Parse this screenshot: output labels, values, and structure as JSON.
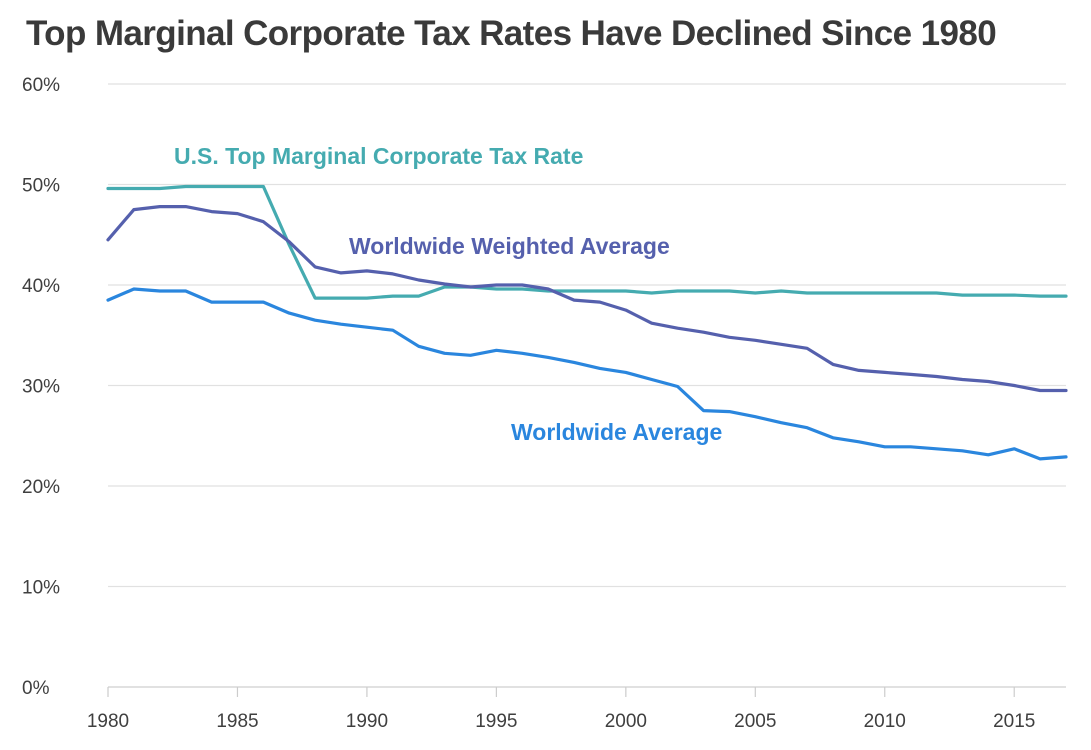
{
  "chart_data": {
    "type": "line",
    "title": "Top Marginal Corporate Tax Rates Have Declined Since 1980",
    "xlabel": "",
    "ylabel": "",
    "xlim": [
      1980,
      2017
    ],
    "ylim": [
      0,
      60
    ],
    "x_ticks": [
      1980,
      1985,
      1990,
      1995,
      2000,
      2005,
      2010,
      2015
    ],
    "y_ticks": [
      0,
      10,
      20,
      30,
      40,
      50,
      60
    ],
    "y_tick_labels": [
      "0%",
      "10%",
      "20%",
      "30%",
      "40%",
      "50%",
      "60%"
    ],
    "grid": "horizontal",
    "legend": "inline labels",
    "x": [
      1980,
      1981,
      1982,
      1983,
      1984,
      1985,
      1986,
      1987,
      1988,
      1989,
      1990,
      1991,
      1992,
      1993,
      1994,
      1995,
      1996,
      1997,
      1998,
      1999,
      2000,
      2001,
      2002,
      2003,
      2004,
      2005,
      2006,
      2007,
      2008,
      2009,
      2010,
      2011,
      2012,
      2013,
      2014,
      2015,
      2016,
      2017
    ],
    "series": [
      {
        "name": "U.S. Top Marginal Corporate Tax Rate",
        "color": "#45abb0",
        "values": [
          49.6,
          49.6,
          49.6,
          49.8,
          49.8,
          49.8,
          49.8,
          44.0,
          38.7,
          38.7,
          38.7,
          38.9,
          38.9,
          39.8,
          39.8,
          39.6,
          39.6,
          39.4,
          39.4,
          39.4,
          39.4,
          39.2,
          39.4,
          39.4,
          39.4,
          39.2,
          39.4,
          39.2,
          39.2,
          39.2,
          39.2,
          39.2,
          39.2,
          39.0,
          39.0,
          39.0,
          38.9,
          38.9
        ]
      },
      {
        "name": "Worldwide Weighted Average",
        "color": "#5560ad",
        "values": [
          44.5,
          47.5,
          47.8,
          47.8,
          47.3,
          47.1,
          46.3,
          44.3,
          41.8,
          41.2,
          41.4,
          41.1,
          40.5,
          40.1,
          39.8,
          40.0,
          40.0,
          39.6,
          38.5,
          38.3,
          37.5,
          36.2,
          35.7,
          35.3,
          34.8,
          34.5,
          34.1,
          33.7,
          32.1,
          31.5,
          31.3,
          31.1,
          30.9,
          30.6,
          30.4,
          30.0,
          29.5,
          29.5
        ]
      },
      {
        "name": "Worldwide Average",
        "color": "#2a86de",
        "values": [
          38.5,
          39.6,
          39.4,
          39.4,
          38.3,
          38.3,
          38.3,
          37.2,
          36.5,
          36.1,
          35.8,
          35.5,
          33.9,
          33.2,
          33.0,
          33.5,
          33.2,
          32.8,
          32.3,
          31.7,
          31.3,
          30.6,
          29.9,
          27.5,
          27.4,
          26.9,
          26.3,
          25.8,
          24.8,
          24.4,
          23.9,
          23.9,
          23.7,
          23.5,
          23.1,
          23.7,
          22.7,
          22.9
        ]
      }
    ]
  }
}
